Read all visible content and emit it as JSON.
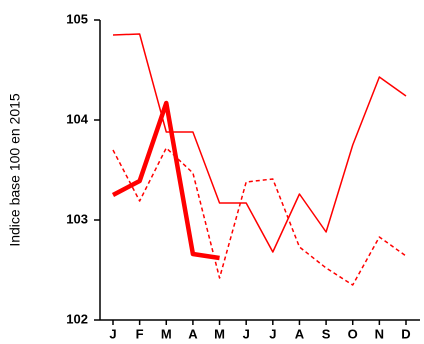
{
  "chart_data": {
    "type": "line",
    "y_label": "Indice base 100 en 2015",
    "categories": [
      "J",
      "F",
      "M",
      "A",
      "M",
      "J",
      "J",
      "A",
      "S",
      "O",
      "N",
      "D"
    ],
    "series": [
      {
        "color": "#ff0000",
        "style": "solid",
        "width": 1.5,
        "values": [
          104.85,
          104.86,
          103.88,
          103.88,
          103.17,
          103.17,
          102.68,
          103.26,
          102.88,
          103.75,
          104.43,
          104.24
        ]
      },
      {
        "color": "#ff0000",
        "style": "dashed",
        "width": 1.5,
        "values": [
          103.7,
          103.19,
          103.72,
          103.47,
          102.42,
          103.38,
          103.41,
          102.73,
          102.52,
          102.35,
          102.83,
          102.64
        ]
      },
      {
        "color": "#ff0000",
        "style": "solid",
        "width": 4.5,
        "values": [
          103.25,
          103.39,
          104.17,
          102.66,
          102.62,
          null,
          null,
          null,
          null,
          null,
          null,
          null
        ]
      }
    ],
    "ylim": [
      102,
      105
    ],
    "yticks": [
      102,
      103,
      104,
      105
    ],
    "grid": false
  }
}
